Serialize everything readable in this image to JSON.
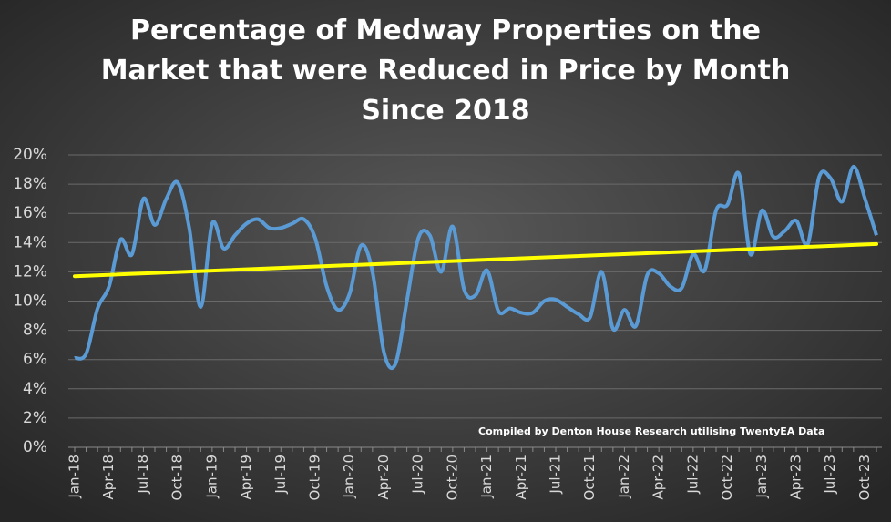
{
  "chart_data": {
    "type": "line",
    "title": [
      "Percentage of Medway Properties on the",
      "Market that were Reduced in Price by Month",
      "Since 2018"
    ],
    "annotation": "Compiled by Denton House Research utilising TwentyEA Data",
    "categories": [
      "Jan-18",
      null,
      null,
      "Apr-18",
      null,
      null,
      "Jul-18",
      null,
      null,
      "Oct-18",
      null,
      null,
      "Jan-19",
      null,
      null,
      "Apr-19",
      null,
      null,
      "Jul-19",
      null,
      null,
      "Oct-19",
      null,
      null,
      "Jan-20",
      null,
      null,
      "Apr-20",
      null,
      null,
      "Jul-20",
      null,
      null,
      "Oct-20",
      null,
      null,
      "Jan-21",
      null,
      null,
      "Apr-21",
      null,
      null,
      "Jul-21",
      null,
      null,
      "Oct-21",
      null,
      null,
      "Jan-22",
      null,
      null,
      "Apr-22",
      null,
      null,
      "Jul-22",
      null,
      null,
      "Oct-22",
      null,
      null,
      "Jan-23",
      null,
      null,
      "Apr-23",
      null,
      null,
      "Jul-23",
      null,
      null,
      "Oct-23",
      null
    ],
    "series": [
      {
        "color": "#5b9bd5",
        "values": [
          6.1,
          6.4,
          9.5,
          11,
          14.2,
          13.2,
          17,
          15.2,
          17,
          18.1,
          15,
          9.6,
          15.3,
          13.6,
          14.5,
          15.3,
          15.6,
          15,
          15,
          15.3,
          15.6,
          14.3,
          11,
          9.4,
          10.5,
          13.8,
          12,
          6.5,
          5.7,
          10,
          14.3,
          14.5,
          12,
          15.1,
          10.8,
          10.4,
          12.1,
          9.3,
          9.5,
          9.2,
          9.2,
          10,
          10.1,
          9.6,
          9.1,
          8.9,
          12,
          8.1,
          9.4,
          8.3,
          11.8,
          11.9,
          11,
          10.9,
          13.2,
          12.1,
          16.2,
          16.6,
          18.7,
          13.2,
          16.2,
          14.4,
          14.8,
          15.5,
          13.9,
          18.5,
          18.4,
          16.8,
          19.2,
          17,
          14.5
        ]
      }
    ],
    "trendline": {
      "color": "#ffff00",
      "values": [
        11.7,
        13.9
      ]
    },
    "ylim": [
      0,
      20
    ],
    "yticks": [
      {
        "value": 0,
        "label": "0%"
      },
      {
        "value": 2,
        "label": "2%"
      },
      {
        "value": 4,
        "label": "4%"
      },
      {
        "value": 6,
        "label": "6%"
      },
      {
        "value": 8,
        "label": "8%"
      },
      {
        "value": 10,
        "label": "10%"
      },
      {
        "value": 12,
        "label": "12%"
      },
      {
        "value": 14,
        "label": "14%"
      },
      {
        "value": 16,
        "label": "16%"
      },
      {
        "value": 18,
        "label": "18%"
      },
      {
        "value": 20,
        "label": "20%"
      }
    ],
    "grid": true
  }
}
